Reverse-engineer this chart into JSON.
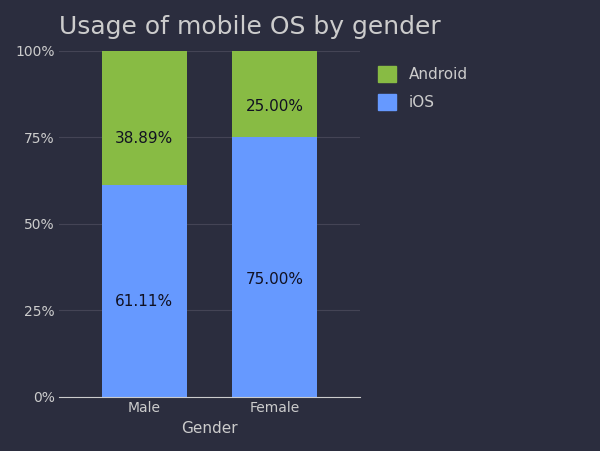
{
  "title": "Usage of mobile OS by gender",
  "xlabel": "Gender",
  "ylabel": "",
  "categories": [
    "Male",
    "Female"
  ],
  "ios_values": [
    61.11,
    75.0
  ],
  "android_values": [
    38.89,
    25.0
  ],
  "ios_color": "#6699FF",
  "android_color": "#88BB44",
  "background_color": "#2B2D3E",
  "text_color": "#CCCCCC",
  "grid_color": "#444455",
  "bar_width": 0.65,
  "yticks": [
    0,
    25,
    50,
    75,
    100
  ],
  "ytick_labels": [
    "0%",
    "25%",
    "50%",
    "75%",
    "100%"
  ],
  "title_fontsize": 18,
  "label_fontsize": 11,
  "tick_fontsize": 10,
  "legend_fontsize": 11,
  "annot_fontsize": 11
}
